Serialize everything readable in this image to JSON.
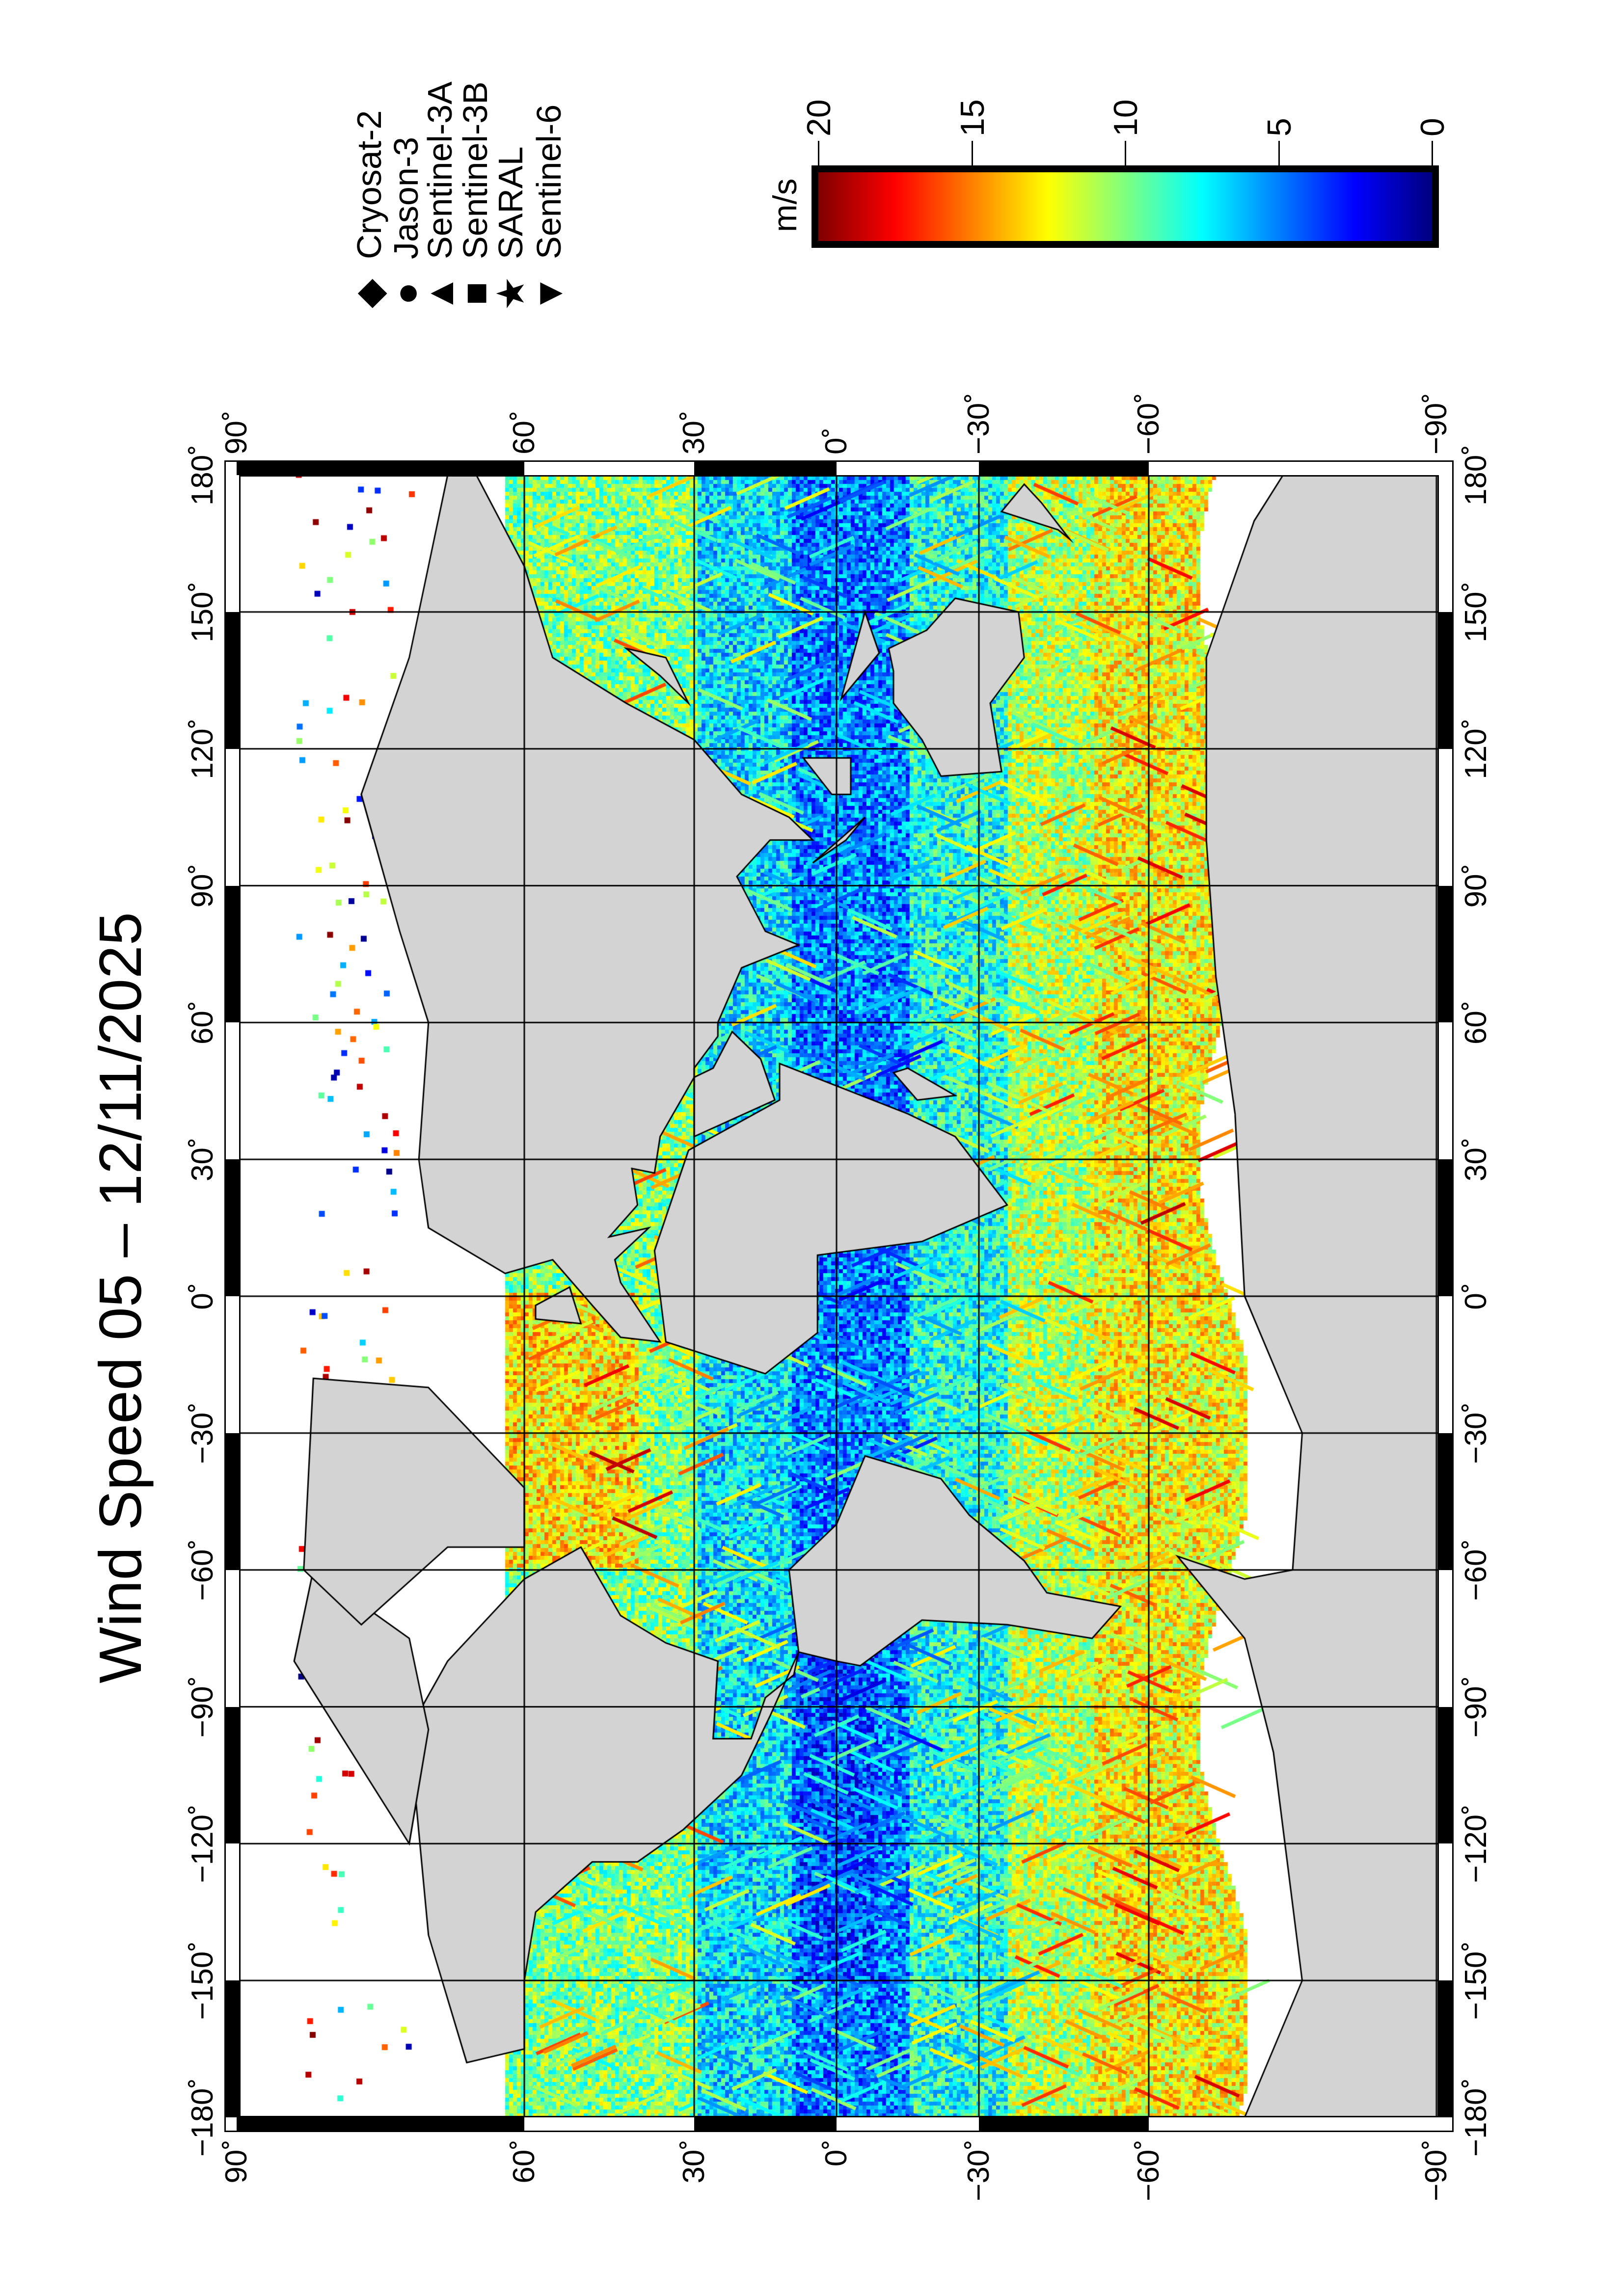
{
  "title": "Wind Speed 05 – 12/11/2025",
  "map": {
    "projection": "cylindrical (Miller-like)",
    "lon_range": [
      -180,
      180
    ],
    "lat_range": [
      -90,
      90
    ],
    "grid_interval_deg": 30,
    "land_color": "#d3d3d3",
    "no_data_color": "#ffffff",
    "lon_labels": [
      "−180˚",
      "−150˚",
      "−120˚",
      "−90˚",
      "−60˚",
      "−30˚",
      "0˚",
      "30˚",
      "60˚",
      "90˚",
      "120˚",
      "150˚",
      "180˚"
    ],
    "lat_labels": [
      "90˚",
      "60˚",
      "30˚",
      "0˚",
      "−30˚",
      "−60˚",
      "−90˚"
    ]
  },
  "legend": {
    "items": [
      {
        "label": "Cryosat-2",
        "symbol": "diamond",
        "glyph": "◆"
      },
      {
        "label": "Jason-3",
        "symbol": "circle",
        "glyph": "●"
      },
      {
        "label": "Sentinel-3A",
        "symbol": "triangle",
        "glyph": "▲"
      },
      {
        "label": "Sentinel-3B",
        "symbol": "square",
        "glyph": "■"
      },
      {
        "label": "SARAL",
        "symbol": "star",
        "glyph": "★"
      },
      {
        "label": "Sentinel-6",
        "symbol": "inverted-triangle",
        "glyph": "▼"
      }
    ]
  },
  "colorbar": {
    "unit": "m/s",
    "range": [
      0,
      20
    ],
    "ticks": [
      "20",
      "15",
      "10",
      "5",
      "0"
    ],
    "colormap": [
      "#00007f",
      "#0000ff",
      "#007fff",
      "#00ffff",
      "#7fff7f",
      "#ffff00",
      "#ff7f00",
      "#ff0000",
      "#7f0000"
    ]
  }
}
